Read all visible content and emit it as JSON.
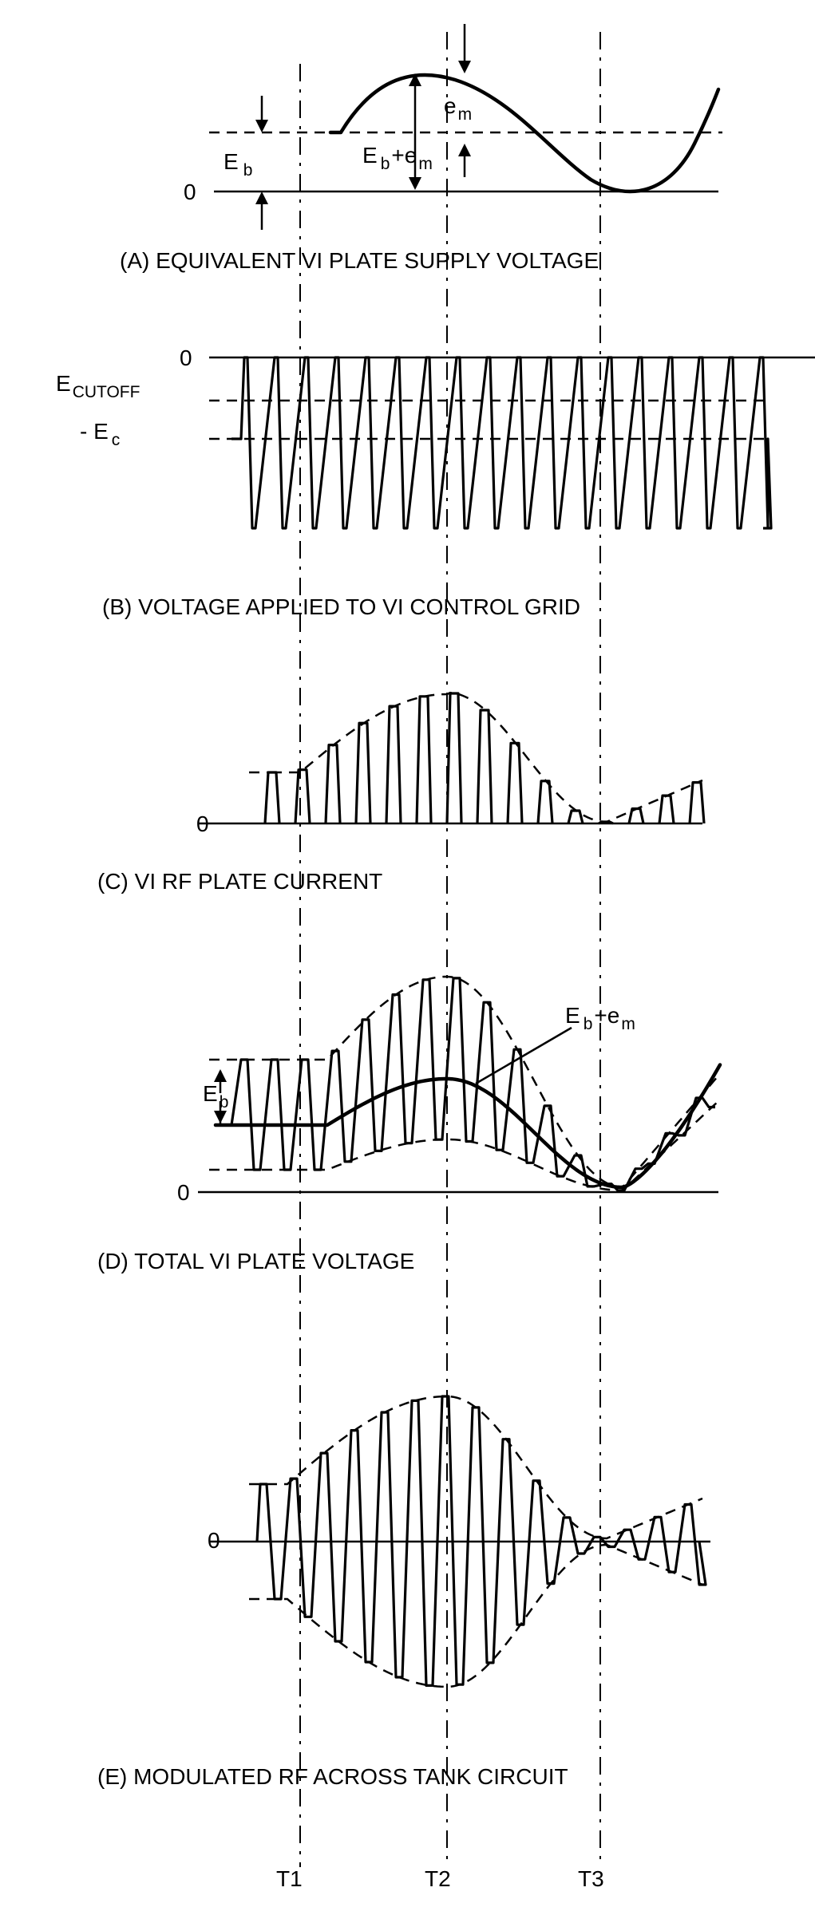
{
  "panels": {
    "a": {
      "caption": "(A) EQUIVALENT VI PLATE SUPPLY VOLTAGE",
      "eb_label": "E",
      "eb_sub": "b",
      "zero_label": "0",
      "em_label": "e",
      "em_sub": "m",
      "sum_label": "E",
      "sum_sub1": "b",
      "sum_plus": "+e",
      "sum_sub2": "m"
    },
    "b": {
      "caption": "(B) VOLTAGE APPLIED TO VI CONTROL GRID",
      "zero_label": "0",
      "cutoff_label": "E",
      "cutoff_sub": "CUTOFF",
      "ec_label": "- E",
      "ec_sub": "c"
    },
    "c": {
      "caption": "(C) VI RF PLATE CURRENT",
      "zero_label": "0"
    },
    "d": {
      "caption": "(D) TOTAL VI PLATE VOLTAGE",
      "zero_label": "0",
      "eb_label": "E",
      "eb_sub": "b",
      "sum_label": "E",
      "sum_sub1": "b",
      "sum_plus": "+e",
      "sum_sub2": "m"
    },
    "e": {
      "caption": "(E) MODULATED RF ACROSS TANK CIRCUIT",
      "zero_label": "0"
    }
  },
  "time_markers": [
    "T1",
    "T2",
    "T3"
  ]
}
